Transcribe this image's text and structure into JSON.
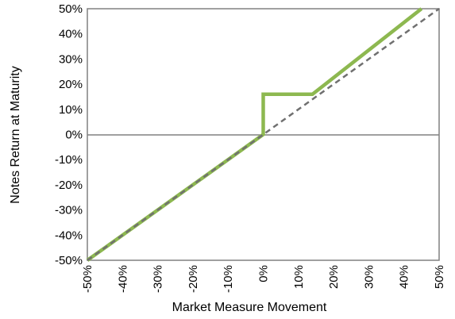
{
  "chart_data": {
    "type": "line",
    "title": "",
    "xlabel": "Market Measure Movement",
    "ylabel": "Notes Return at Maturity",
    "xlim": [
      -50,
      50
    ],
    "ylim": [
      -50,
      50
    ],
    "x_tick_labels": [
      "-50%",
      "-40%",
      "-30%",
      "-20%",
      "-10%",
      "0%",
      "10%",
      "20%",
      "30%",
      "40%",
      "50%"
    ],
    "y_tick_labels": [
      "50%",
      "40%",
      "30%",
      "20%",
      "10%",
      "0%",
      "-10%",
      "-20%",
      "-30%",
      "-40%",
      "-50%"
    ],
    "grid": false,
    "legend": "none",
    "series": [
      {
        "style": "solid",
        "color": "#8DB850",
        "points": [
          [
            -50,
            -50
          ],
          [
            0,
            0
          ],
          [
            0,
            16
          ],
          [
            14,
            16
          ],
          [
            45,
            50
          ]
        ]
      },
      {
        "style": "dashed",
        "color": "#707070",
        "points": [
          [
            -50,
            -50
          ],
          [
            50,
            50
          ]
        ]
      }
    ],
    "zero_line_color": "#808080",
    "frame_color": "#808080"
  }
}
